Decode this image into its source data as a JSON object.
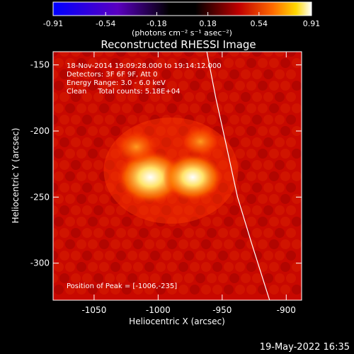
{
  "chart_data": {
    "type": "heatmap",
    "title": "Reconstructed RHESSI Image",
    "xlabel": "Heliocentric X (arcsec)",
    "ylabel": "Heliocentric Y (arcsec)",
    "xlim": [
      -1082,
      -888
    ],
    "ylim": [
      -328,
      -140
    ],
    "xticks": [
      "-1050",
      "-1000",
      "-950",
      "-900"
    ],
    "xtick_values": [
      -1050,
      -1000,
      -950,
      -900
    ],
    "yticks": [
      "-150",
      "-200",
      "-250",
      "-300"
    ],
    "ytick_values": [
      -150,
      -200,
      -250,
      -300
    ],
    "colorbar": {
      "range": [
        -0.91,
        0.91
      ],
      "ticks": [
        "-0.91",
        "-0.54",
        "-0.18",
        "0.18",
        "0.54",
        "0.91"
      ],
      "tick_values": [
        -0.91,
        -0.54,
        -0.18,
        0.18,
        0.54,
        0.91
      ],
      "units": "(photons cm⁻² s⁻¹ asec⁻²)"
    },
    "annotations": [
      "18-Nov-2014 19:09:28.000 to 19:14:12.000",
      "Detectors: 3F 6F 9F, Att 0",
      "Energy Range: 3.0 - 6.0 keV",
      "Clean     Total counts: 5.18E+04"
    ],
    "peak_label": "Position of Peak = [-1006,-235]",
    "peak": [
      -1006,
      -235
    ],
    "sources": [
      {
        "x": -1006,
        "y": -235,
        "peak": 0.91
      },
      {
        "x": -973,
        "y": -235,
        "peak": 0.75
      },
      {
        "x": -1017,
        "y": -212,
        "peak": 0.35
      },
      {
        "x": -967,
        "y": -208,
        "peak": 0.3
      }
    ],
    "limb": [
      [
        -962,
        -140
      ],
      [
        -955,
        -175
      ],
      [
        -947,
        -210
      ],
      [
        -938,
        -250
      ],
      [
        -927,
        -285
      ],
      [
        -913,
        -328
      ]
    ],
    "colors": {
      "background": "#000000",
      "limb": "#ffffff",
      "text": "#ffffff"
    }
  },
  "footer": {
    "date": "19-May-2022 16:35"
  }
}
